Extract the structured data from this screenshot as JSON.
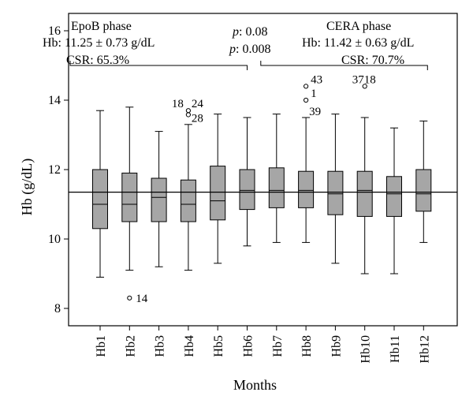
{
  "chart_data": {
    "type": "box",
    "categories": [
      "Hb1",
      "Hb2",
      "Hb3",
      "Hb4",
      "Hb5",
      "Hb6",
      "Hb7",
      "Hb8",
      "Hb9",
      "Hb10",
      "Hb11",
      "Hb12"
    ],
    "boxes": [
      {
        "min": 8.9,
        "q1": 10.3,
        "median": 11.0,
        "q3": 12.0,
        "max": 13.7
      },
      {
        "min": 9.1,
        "q1": 10.5,
        "median": 11.0,
        "q3": 11.9,
        "max": 13.8
      },
      {
        "min": 9.2,
        "q1": 10.5,
        "median": 11.2,
        "q3": 11.75,
        "max": 13.1
      },
      {
        "min": 9.1,
        "q1": 10.5,
        "median": 11.0,
        "q3": 11.7,
        "max": 13.3
      },
      {
        "min": 9.3,
        "q1": 10.55,
        "median": 11.1,
        "q3": 12.1,
        "max": 13.6
      },
      {
        "min": 9.8,
        "q1": 10.85,
        "median": 11.4,
        "q3": 12.0,
        "max": 13.5
      },
      {
        "min": 9.9,
        "q1": 10.9,
        "median": 11.4,
        "q3": 12.05,
        "max": 13.6
      },
      {
        "min": 9.9,
        "q1": 10.9,
        "median": 11.4,
        "q3": 11.95,
        "max": 13.5
      },
      {
        "min": 9.3,
        "q1": 10.7,
        "median": 11.3,
        "q3": 11.95,
        "max": 13.6
      },
      {
        "min": 9.0,
        "q1": 10.65,
        "median": 11.4,
        "q3": 11.95,
        "max": 13.5
      },
      {
        "min": 9.0,
        "q1": 10.65,
        "median": 11.3,
        "q3": 11.8,
        "max": 13.2
      },
      {
        "min": 9.9,
        "q1": 10.8,
        "median": 11.3,
        "q3": 12.0,
        "max": 13.4
      }
    ],
    "outliers": [
      {
        "category": "Hb2",
        "value": 8.3,
        "label": "14"
      },
      {
        "category": "Hb4",
        "value": 13.7,
        "label": "18"
      },
      {
        "category": "Hb4",
        "value": 13.7,
        "label": "24"
      },
      {
        "category": "Hb4",
        "value": 13.58,
        "label": "28"
      },
      {
        "category": "Hb8",
        "value": 14.4,
        "label": "43"
      },
      {
        "category": "Hb8",
        "value": 14.0,
        "label": "1"
      },
      {
        "category": "Hb8",
        "value": 14.0,
        "label": "39"
      },
      {
        "category": "Hb10",
        "value": 14.4,
        "label": "3718"
      }
    ],
    "reference_line": 11.35,
    "xlabel": "Months",
    "ylabel": "Hb (g/dL)",
    "ylim": [
      7.5,
      16.5
    ],
    "yticks": [
      8,
      10,
      12,
      14,
      16
    ],
    "box_color": "#a6a6a6",
    "brackets": [
      {
        "from": "Hb1",
        "to": "Hb6",
        "value": 15.0
      },
      {
        "from": "Hb7",
        "to": "Hb12",
        "value": 15.0
      }
    ],
    "annotations": {
      "epob_title": "EpoB phase",
      "epob_hb": "Hb: 11.25 ± 0.73 g/dL",
      "epob_csr": "CSR: 65.3%",
      "p_prefix": "p",
      "p1": ": 0.08",
      "p2": ": 0.008",
      "cera_title": "CERA phase",
      "cera_hb": "Hb: 11.42 ± 0.63 g/dL",
      "cera_csr": "CSR: 70.7%"
    }
  }
}
